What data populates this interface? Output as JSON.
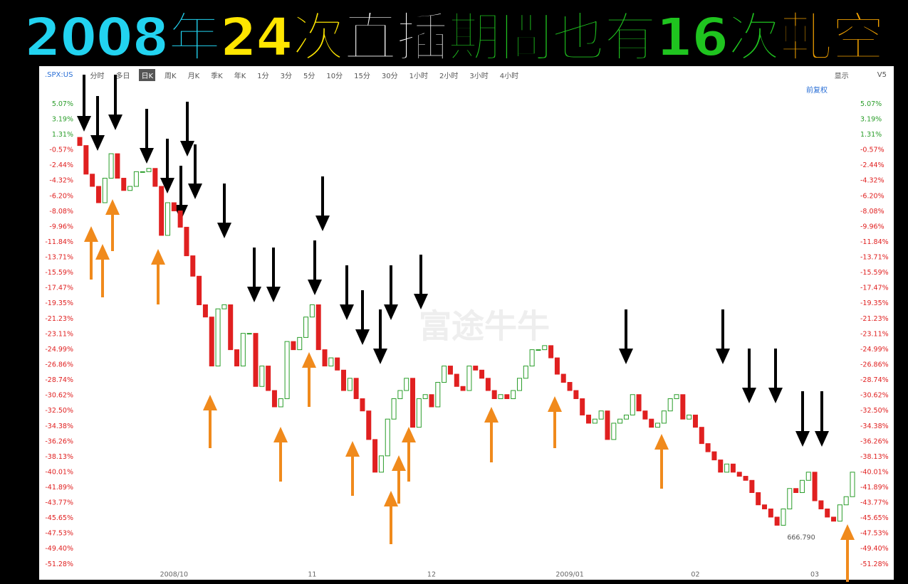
{
  "title_segments": [
    {
      "text": "2008年",
      "color": "#22d3f0"
    },
    {
      "text": "24次",
      "color": "#ffe600"
    },
    {
      "text": "直插",
      "color": "#ffffff"
    },
    {
      "text": "期間也有16次",
      "color": "#1fc41f"
    },
    {
      "text": "軋空",
      "color": "#f5a300"
    }
  ],
  "toolbar": {
    "symbol": ".SPX:US",
    "periods": [
      "分时",
      "多日",
      "日K",
      "周K",
      "月K",
      "季K",
      "年K",
      "1分",
      "3分",
      "5分",
      "10分",
      "15分",
      "30分",
      "1小时",
      "2小时",
      "3小时",
      "4小时"
    ],
    "selected": "日K",
    "display": "显示",
    "version": "V5",
    "adjust": "前复权"
  },
  "watermark": "富途牛牛",
  "chart_data": {
    "type": "candlestick",
    "categories": [
      null,
      null,
      null,
      null,
      null,
      null,
      null,
      null,
      null,
      null,
      null,
      null,
      null,
      null,
      null,
      "2008/10",
      null,
      null,
      null,
      null,
      null,
      null,
      null,
      null,
      null,
      null,
      null,
      null,
      null,
      null,
      null,
      null,
      null,
      null,
      null,
      null,
      null,
      "11",
      null,
      null,
      null,
      null,
      null,
      null,
      null,
      null,
      null,
      null,
      null,
      null,
      null,
      null,
      null,
      null,
      null,
      null,
      "12",
      null,
      null,
      null,
      null,
      null,
      null,
      null,
      null,
      null,
      null,
      null,
      null,
      null,
      null,
      null,
      null,
      null,
      null,
      null,
      null,
      null,
      "2009/01",
      null,
      null,
      null,
      null,
      null,
      null,
      null,
      null,
      null,
      null,
      null,
      null,
      null,
      null,
      null,
      null,
      null,
      null,
      null,
      "02",
      null,
      null,
      null,
      null,
      null,
      null,
      null,
      null,
      null,
      null,
      null,
      null,
      null,
      null,
      null,
      null,
      null,
      null,
      "03",
      null,
      null,
      null,
      null,
      null,
      null
    ],
    "open": [
      1,
      0,
      -3.5,
      -5,
      -7,
      -4,
      -1,
      -4,
      -5.5,
      -5,
      -3.2,
      -3.2,
      -2.8,
      -5,
      -11,
      -7,
      -8,
      -10,
      -13.5,
      -16,
      -19.5,
      -21,
      -27,
      -20,
      -19.5,
      -25,
      -27,
      -23,
      -23,
      -29.5,
      -27,
      -30,
      -32,
      -31,
      -24,
      -25,
      -23.5,
      -21,
      -19.5,
      -25,
      -27,
      -26,
      -27.5,
      -30,
      -28.5,
      -31,
      -32.5,
      -36,
      -40,
      -38,
      -33.5,
      -31,
      -30,
      -28.5,
      -34.5,
      -31,
      -30.5,
      -32,
      -29,
      -27,
      -28,
      -29.5,
      -30,
      -27,
      -27.5,
      -28.5,
      -30,
      -31,
      -30.5,
      -31,
      -30,
      -28.5,
      -27,
      -25,
      -25,
      -24.5,
      -26,
      -28,
      -29,
      -30,
      -31,
      -33,
      -34,
      -33.5,
      -32.5,
      -36,
      -34,
      -33.5,
      -33,
      -30.5,
      -32.5,
      -33.5,
      -34.5,
      -34,
      -32.5,
      -31,
      -30.5,
      -33.5,
      -33,
      -34.5,
      -36.5,
      -37.5,
      -38.5,
      -40,
      -39,
      -40,
      -40.5,
      -41,
      -42.5,
      -44,
      -44.5,
      -45.5,
      -46.5,
      -44.5,
      -42,
      -42.5,
      -41,
      -40,
      -43.5,
      -44.5,
      -45.5,
      -46,
      -44,
      -43
    ],
    "close": [
      0,
      -3.5,
      -5,
      -7,
      -4,
      -1,
      -4,
      -5.5,
      -5,
      -3.2,
      -3.2,
      -2.8,
      -5,
      -11,
      -7,
      -8,
      -10,
      -13.5,
      -16,
      -19.5,
      -21,
      -27,
      -20,
      -19.5,
      -25,
      -27,
      -23,
      -23,
      -29.5,
      -27,
      -30,
      -32,
      -31,
      -24,
      -25,
      -23.5,
      -21,
      -19.5,
      -25,
      -27,
      -26,
      -27.5,
      -30,
      -28.5,
      -31,
      -32.5,
      -36,
      -40,
      -38,
      -33.5,
      -31,
      -30,
      -28.5,
      -34.5,
      -31,
      -30.5,
      -32,
      -29,
      -27,
      -28,
      -29.5,
      -30,
      -27,
      -27.5,
      -28.5,
      -30,
      -31,
      -30.5,
      -31,
      -30,
      -28.5,
      -27,
      -25,
      -25,
      -24.5,
      -26,
      -28,
      -29,
      -30,
      -31,
      -33,
      -34,
      -33.5,
      -32.5,
      -36,
      -34,
      -33.5,
      -33,
      -30.5,
      -32.5,
      -33.5,
      -34.5,
      -34,
      -32.5,
      -31,
      -30.5,
      -33.5,
      -33,
      -34.5,
      -36.5,
      -37.5,
      -38.5,
      -40,
      -39,
      -40,
      -40.5,
      -41,
      -42.5,
      -44,
      -44.5,
      -45.5,
      -46.5,
      -44.5,
      -42,
      -42.5,
      -41,
      -40,
      -43.5,
      -44.5,
      -45.5,
      -46,
      -44,
      -43,
      -40
    ],
    "up_color": "#2a9d2a",
    "down_color": "#e02020",
    "pos_tick_color": "#2a9d2a",
    "neg_tick_color": "#e02020",
    "ylim": [
      -52.3,
      6.5
    ],
    "yticks": [
      {
        "value": 5.07,
        "label": "5.07%"
      },
      {
        "value": 3.19,
        "label": "3.19%"
      },
      {
        "value": 1.31,
        "label": "1.31%"
      },
      {
        "value": -0.57,
        "label": "-0.57%"
      },
      {
        "value": -2.44,
        "label": "-2.44%"
      },
      {
        "value": -4.32,
        "label": "-4.32%"
      },
      {
        "value": -6.2,
        "label": "-6.20%"
      },
      {
        "value": -8.08,
        "label": "-8.08%"
      },
      {
        "value": -9.96,
        "label": "-9.96%"
      },
      {
        "value": -11.84,
        "label": "-11.84%"
      },
      {
        "value": -13.71,
        "label": "-13.71%"
      },
      {
        "value": -15.59,
        "label": "-15.59%"
      },
      {
        "value": -17.47,
        "label": "-17.47%"
      },
      {
        "value": -19.35,
        "label": "-19.35%"
      },
      {
        "value": -21.23,
        "label": "-21.23%"
      },
      {
        "value": -23.11,
        "label": "-23.11%"
      },
      {
        "value": -24.99,
        "label": "-24.99%"
      },
      {
        "value": -26.86,
        "label": "-26.86%"
      },
      {
        "value": -28.74,
        "label": "-28.74%"
      },
      {
        "value": -30.62,
        "label": "-30.62%"
      },
      {
        "value": -32.5,
        "label": "-32.50%"
      },
      {
        "value": -34.38,
        "label": "-34.38%"
      },
      {
        "value": -36.26,
        "label": "-36.26%"
      },
      {
        "value": -38.13,
        "label": "-38.13%"
      },
      {
        "value": -40.01,
        "label": "-40.01%"
      },
      {
        "value": -41.89,
        "label": "-41.89%"
      },
      {
        "value": -43.77,
        "label": "-43.77%"
      },
      {
        "value": -45.65,
        "label": "-45.65%"
      },
      {
        "value": -47.53,
        "label": "-47.53%"
      },
      {
        "value": -49.4,
        "label": "-49.40%"
      },
      {
        "value": -51.28,
        "label": "-51.28%"
      }
    ],
    "grid": false,
    "annotations": [
      "666.790"
    ]
  }
}
